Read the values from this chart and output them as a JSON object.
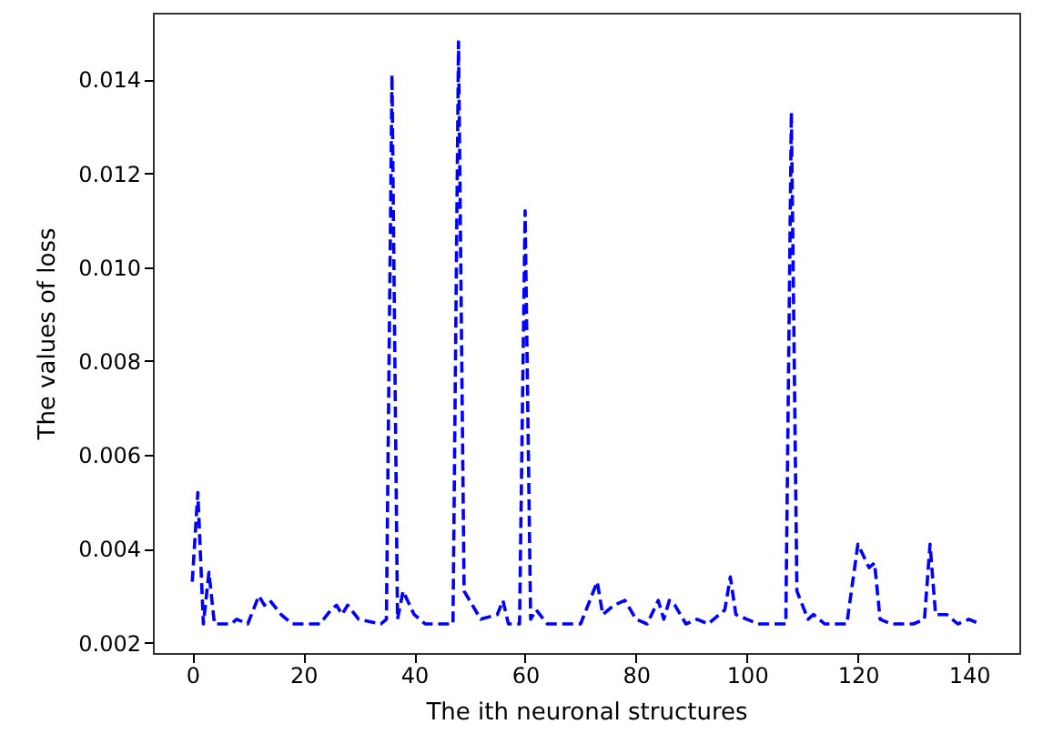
{
  "chart_data": {
    "type": "line",
    "xlabel": "The ith neuronal structures",
    "ylabel": "The values of loss",
    "xlim": [
      -7.1,
      149.1
    ],
    "xticks": [
      0,
      20,
      40,
      60,
      80,
      100,
      120,
      140
    ],
    "ylim": [
      0.00178,
      0.01542
    ],
    "yticks": [
      0.002,
      0.004,
      0.006,
      0.008,
      {
        "value": 0.01,
        "label": "0.010"
      },
      0.012,
      0.014
    ],
    "grid": false,
    "line_style": "dashed",
    "x": [
      0,
      1,
      2,
      3,
      4,
      7,
      8,
      10,
      12,
      13,
      14,
      16,
      18,
      23,
      25,
      26,
      27,
      28,
      30,
      34,
      35,
      36,
      37,
      38,
      40,
      42,
      47,
      48,
      49,
      52,
      55,
      56,
      57,
      59,
      60,
      61,
      62,
      64,
      70,
      73,
      74,
      76,
      78,
      80,
      82,
      84,
      85,
      86,
      87,
      89,
      91,
      93,
      96,
      97,
      98,
      100,
      102,
      106,
      107,
      108,
      109,
      111,
      112,
      114,
      118,
      120,
      122,
      123,
      124,
      126,
      130,
      132,
      133,
      134,
      136,
      138,
      140,
      142
    ],
    "series": [
      {
        "color": "#0000ff",
        "values": [
          0.0033,
          0.0052,
          0.0024,
          0.0035,
          0.0024,
          0.0024,
          0.0025,
          0.0024,
          0.003,
          0.0028,
          0.0029,
          0.0026,
          0.0024,
          0.0024,
          0.0027,
          0.0028,
          0.0026,
          0.0028,
          0.0025,
          0.0024,
          0.0025,
          0.0141,
          0.0025,
          0.0031,
          0.0026,
          0.0024,
          0.0024,
          0.0148,
          0.0031,
          0.0025,
          0.0026,
          0.0029,
          0.0024,
          0.0024,
          0.0112,
          0.0025,
          0.0027,
          0.0024,
          0.0024,
          0.0033,
          0.0026,
          0.0028,
          0.0029,
          0.0025,
          0.0024,
          0.0029,
          0.0025,
          0.0029,
          0.0028,
          0.0024,
          0.0025,
          0.0024,
          0.0027,
          0.0034,
          0.0026,
          0.0025,
          0.0024,
          0.0024,
          0.0024,
          0.0133,
          0.0031,
          0.0025,
          0.0026,
          0.0024,
          0.0024,
          0.0041,
          0.0036,
          0.0037,
          0.0025,
          0.0024,
          0.0024,
          0.0025,
          0.0041,
          0.0026,
          0.0026,
          0.0024,
          0.0025,
          0.0024
        ]
      }
    ]
  }
}
